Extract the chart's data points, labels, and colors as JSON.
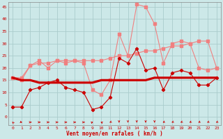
{
  "x": [
    0,
    1,
    2,
    3,
    4,
    5,
    6,
    7,
    8,
    9,
    10,
    11,
    12,
    13,
    14,
    15,
    16,
    17,
    18,
    19,
    20,
    21,
    22,
    23
  ],
  "series_rafales": [
    16,
    15,
    21,
    23,
    20,
    23,
    22,
    23,
    22,
    11,
    9,
    15,
    34,
    25,
    46,
    45,
    38,
    22,
    30,
    31,
    30,
    20,
    19,
    20
  ],
  "series_moyen": [
    4,
    4,
    11,
    12,
    14,
    15,
    12,
    11,
    10,
    3,
    4,
    8,
    24,
    22,
    28,
    19,
    20,
    11,
    18,
    19,
    18,
    13,
    13,
    16
  ],
  "series_trend_rafales": [
    16,
    16,
    21,
    22,
    22,
    23,
    23,
    23,
    23,
    23,
    23,
    24,
    25,
    25,
    26,
    27,
    27,
    28,
    29,
    29,
    30,
    31,
    31,
    20
  ],
  "series_trend_moyen": [
    16,
    15,
    15,
    14,
    14,
    14,
    14,
    14,
    14,
    14,
    15,
    15,
    15,
    15,
    15,
    15,
    16,
    16,
    16,
    16,
    16,
    16,
    16,
    16
  ],
  "wind_dirs": [
    210,
    60,
    90,
    90,
    90,
    90,
    90,
    90,
    90,
    135,
    225,
    315,
    0,
    0,
    0,
    0,
    0,
    315,
    315,
    315,
    315,
    315,
    315,
    315
  ],
  "bg_color": "#cce8e8",
  "grid_color": "#aacccc",
  "color_light": "#f08080",
  "color_dark": "#cc0000",
  "xlabel": "Vent moyen/en rafales ( km/h )",
  "yticks": [
    0,
    5,
    10,
    15,
    20,
    25,
    30,
    35,
    40,
    45
  ],
  "ylim": [
    -3.5,
    47
  ],
  "xlim": [
    -0.5,
    23.5
  ]
}
